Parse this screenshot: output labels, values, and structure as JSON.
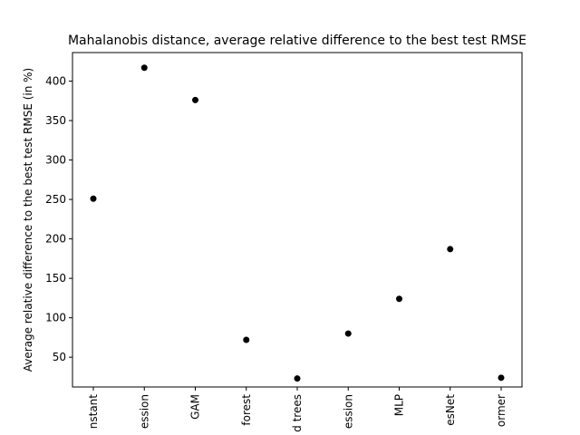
{
  "chart_data": {
    "type": "scatter",
    "title": "Mahalanobis distance, average relative difference to the best test RMSE",
    "xlabel": "",
    "ylabel": "Average relative difference to the best test RMSE (in %)",
    "categories": [
      "nstant",
      "ession",
      "GAM",
      "forest",
      "d trees",
      "ession",
      "MLP",
      "esNet",
      "ormer"
    ],
    "series": [
      {
        "values": [
          251,
          417,
          376,
          72,
          23,
          80,
          124,
          187,
          24
        ]
      }
    ],
    "ylim": [
      12.3,
      436.2
    ],
    "yticks": [
      50,
      100,
      150,
      200,
      250,
      300,
      350,
      400
    ],
    "grid": false,
    "legend": "none",
    "marker_color": "#000000"
  }
}
